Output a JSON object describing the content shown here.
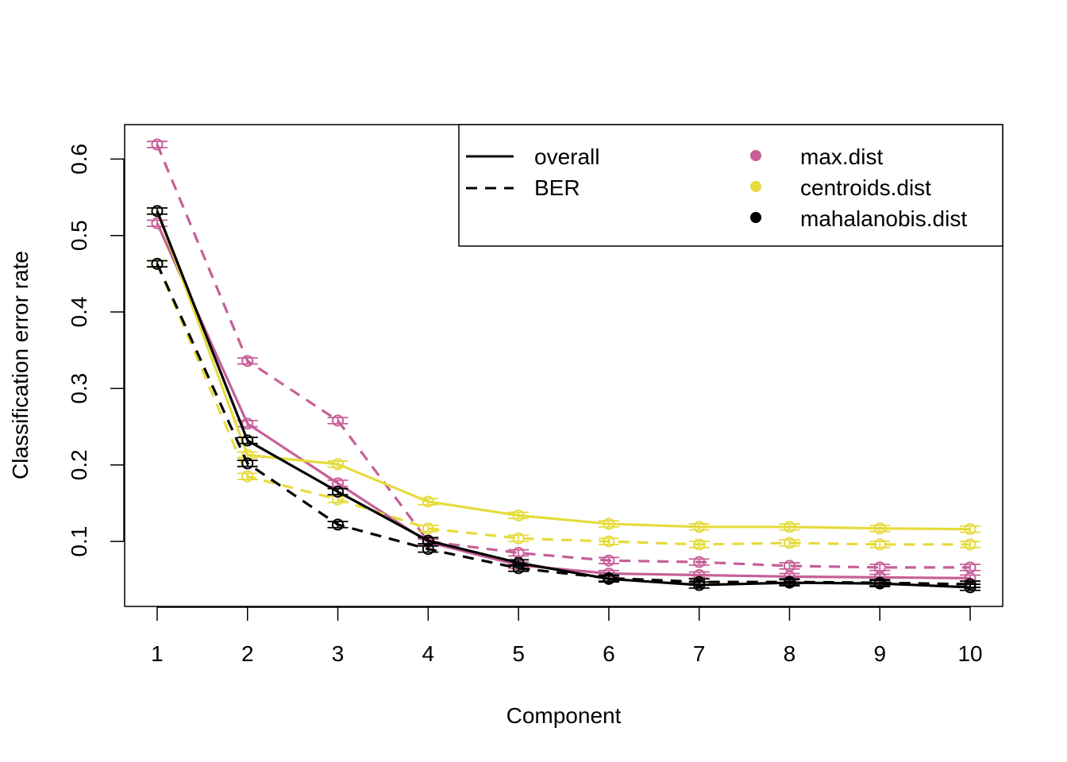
{
  "chart_data": {
    "type": "line",
    "title": "",
    "xlabel": "Component",
    "ylabel": "Classification error rate",
    "x": [
      1,
      2,
      3,
      4,
      5,
      6,
      7,
      8,
      9,
      10
    ],
    "x_ticks": [
      "1",
      "2",
      "3",
      "4",
      "5",
      "6",
      "7",
      "8",
      "9",
      "10"
    ],
    "y_ticks": [
      "0.1",
      "0.2",
      "0.3",
      "0.4",
      "0.5",
      "0.6"
    ],
    "ylim": [
      0.015,
      0.645
    ],
    "xlim": [
      0.64,
      10.36
    ],
    "legend_position": "top-right",
    "legend": {
      "line_types": [
        {
          "label": "overall",
          "dash": "solid"
        },
        {
          "label": "BER",
          "dash": "dashed"
        }
      ],
      "distances": [
        {
          "label": "max.dist",
          "color": "#C65F98"
        },
        {
          "label": "centroids.dist",
          "color": "#E6DB3C"
        },
        {
          "label": "mahalanobis.dist",
          "color": "#000000"
        }
      ]
    },
    "series": [
      {
        "distance": "max.dist",
        "measure": "overall",
        "color": "#C65F98",
        "dash": "solid",
        "values": [
          0.516,
          0.254,
          0.176,
          0.099,
          0.069,
          0.058,
          0.056,
          0.054,
          0.053,
          0.052
        ],
        "errors": [
          0.004,
          0.004,
          0.004,
          0.004,
          0.004,
          0.004,
          0.004,
          0.004,
          0.004,
          0.004
        ]
      },
      {
        "distance": "max.dist",
        "measure": "BER",
        "color": "#C65F98",
        "dash": "dashed",
        "values": [
          0.619,
          0.336,
          0.258,
          0.1,
          0.085,
          0.075,
          0.073,
          0.068,
          0.066,
          0.066
        ],
        "errors": [
          0.004,
          0.004,
          0.004,
          0.004,
          0.004,
          0.004,
          0.004,
          0.004,
          0.004,
          0.004
        ]
      },
      {
        "distance": "centroids.dist",
        "measure": "overall",
        "color": "#E6DB3C",
        "dash": "solid",
        "values": [
          0.532,
          0.213,
          0.201,
          0.152,
          0.134,
          0.123,
          0.119,
          0.119,
          0.117,
          0.116
        ],
        "errors": [
          0.004,
          0.004,
          0.004,
          0.004,
          0.004,
          0.004,
          0.004,
          0.004,
          0.004,
          0.004
        ]
      },
      {
        "distance": "centroids.dist",
        "measure": "BER",
        "color": "#E6DB3C",
        "dash": "dashed",
        "values": [
          0.463,
          0.185,
          0.155,
          0.117,
          0.104,
          0.1,
          0.096,
          0.098,
          0.096,
          0.096
        ],
        "errors": [
          0.004,
          0.004,
          0.004,
          0.004,
          0.004,
          0.004,
          0.004,
          0.004,
          0.004,
          0.004
        ]
      },
      {
        "distance": "mahalanobis.dist",
        "measure": "overall",
        "color": "#000000",
        "dash": "solid",
        "values": [
          0.532,
          0.232,
          0.165,
          0.101,
          0.072,
          0.051,
          0.043,
          0.046,
          0.045,
          0.04
        ],
        "errors": [
          0.004,
          0.004,
          0.004,
          0.004,
          0.004,
          0.004,
          0.004,
          0.004,
          0.004,
          0.004
        ]
      },
      {
        "distance": "mahalanobis.dist",
        "measure": "BER",
        "color": "#000000",
        "dash": "dashed",
        "values": [
          0.463,
          0.202,
          0.122,
          0.09,
          0.065,
          0.052,
          0.047,
          0.047,
          0.046,
          0.044
        ],
        "errors": [
          0.004,
          0.004,
          0.004,
          0.004,
          0.004,
          0.004,
          0.004,
          0.004,
          0.004,
          0.004
        ]
      }
    ]
  }
}
